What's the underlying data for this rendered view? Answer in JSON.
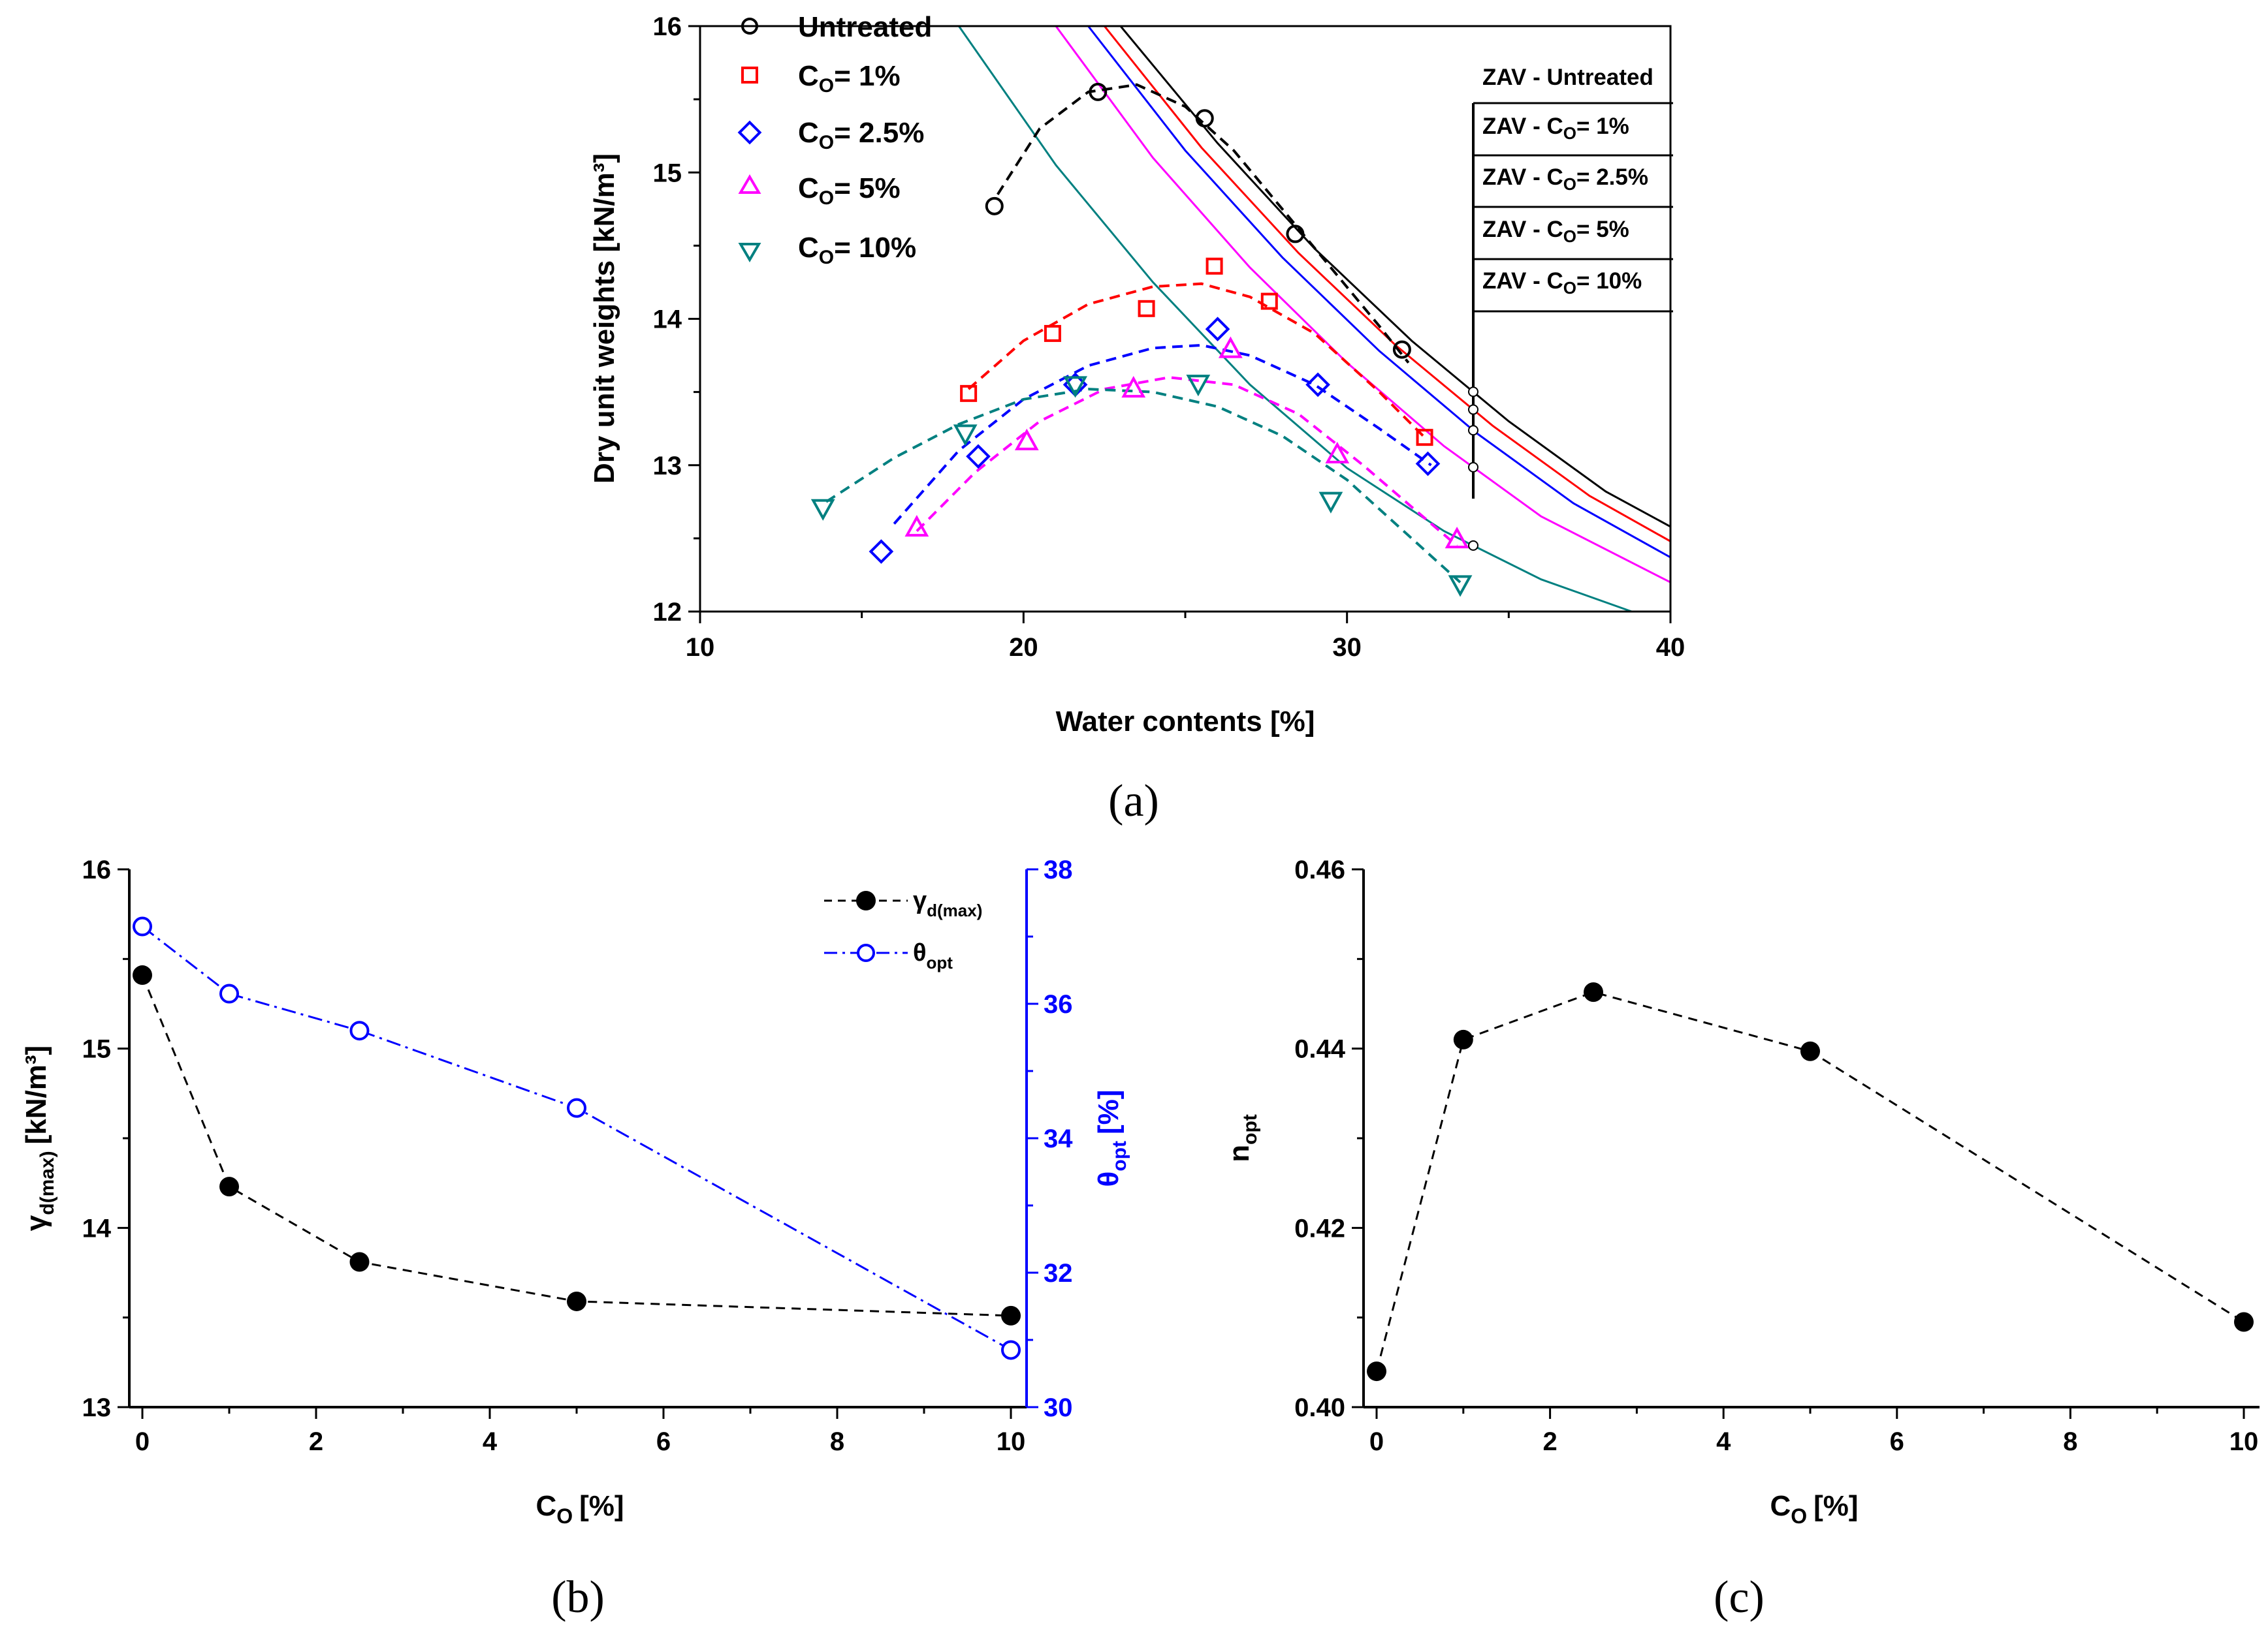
{
  "chart_data": [
    {
      "panel": "(a)",
      "type": "scatter",
      "xlabel": "Water contents [%]",
      "ylabel": "Dry unit weights [kN/m³]",
      "xlim": [
        10,
        40
      ],
      "ylim": [
        12,
        16
      ],
      "xticks": [
        "10",
        "20",
        "30",
        "40"
      ],
      "yticks": [
        "12",
        "13",
        "14",
        "15",
        "16"
      ],
      "series": [
        {
          "name": "Untreated",
          "marker": "circle",
          "color": "#000000",
          "x": [
            19.1,
            22.3,
            25.6,
            28.4,
            31.7
          ],
          "y": [
            14.77,
            15.55,
            15.37,
            14.58,
            13.79
          ]
        },
        {
          "name": "Co = 1%",
          "marker": "square",
          "color": "#ff0000",
          "x": [
            18.3,
            20.9,
            23.8,
            25.9,
            27.6,
            32.4
          ],
          "y": [
            13.49,
            13.9,
            14.07,
            14.36,
            14.12,
            13.19
          ]
        },
        {
          "name": "Co = 2.5%",
          "marker": "diamond",
          "color": "#0000ff",
          "x": [
            15.6,
            18.6,
            21.6,
            26.0,
            29.1,
            32.5
          ],
          "y": [
            12.41,
            13.06,
            13.55,
            13.93,
            13.55,
            13.01
          ]
        },
        {
          "name": "Co = 5%",
          "marker": "triangle-up",
          "color": "#ff00ff",
          "x": [
            16.7,
            20.1,
            23.4,
            26.4,
            29.7,
            33.4
          ],
          "y": [
            12.57,
            13.16,
            13.52,
            13.79,
            13.07,
            12.49
          ]
        },
        {
          "name": "Co = 10%",
          "marker": "triangle-down",
          "color": "#008080",
          "x": [
            13.8,
            18.2,
            21.6,
            25.4,
            29.5,
            33.5
          ],
          "y": [
            12.71,
            13.22,
            13.55,
            13.56,
            12.76,
            12.19
          ]
        }
      ],
      "fit_curves": [
        {
          "series": "Untreated",
          "color": "#000000",
          "x": [
            19.2,
            20.5,
            22.0,
            23.5,
            25.0,
            26.5,
            28.0,
            29.5,
            31.0,
            31.9
          ],
          "y": [
            14.85,
            15.3,
            15.55,
            15.6,
            15.45,
            15.15,
            14.75,
            14.35,
            13.95,
            13.7
          ]
        },
        {
          "series": "Co = 1%",
          "color": "#ff0000",
          "x": [
            18.3,
            20.0,
            22.0,
            24.0,
            25.5,
            27.0,
            29.0,
            31.0,
            32.4
          ],
          "y": [
            13.52,
            13.85,
            14.1,
            14.22,
            14.24,
            14.15,
            13.9,
            13.5,
            13.19
          ]
        },
        {
          "series": "Co = 2.5%",
          "color": "#0000ff",
          "x": [
            16.0,
            18.0,
            20.0,
            22.0,
            24.0,
            25.5,
            27.0,
            29.0,
            31.0,
            32.6
          ],
          "y": [
            12.6,
            13.1,
            13.45,
            13.68,
            13.8,
            13.82,
            13.75,
            13.55,
            13.25,
            13.0
          ]
        },
        {
          "series": "Co = 5%",
          "color": "#ff00ff",
          "x": [
            16.7,
            18.5,
            20.5,
            22.5,
            24.5,
            26.5,
            28.5,
            30.5,
            32.5,
            33.4
          ],
          "y": [
            12.55,
            12.95,
            13.3,
            13.52,
            13.6,
            13.55,
            13.35,
            13.0,
            12.62,
            12.45
          ]
        },
        {
          "series": "Co = 10%",
          "color": "#008080",
          "x": [
            13.9,
            16.0,
            18.0,
            20.0,
            22.0,
            24.0,
            26.0,
            28.0,
            30.0,
            32.0,
            33.5
          ],
          "y": [
            12.75,
            13.05,
            13.28,
            13.45,
            13.52,
            13.5,
            13.4,
            13.2,
            12.9,
            12.5,
            12.2
          ]
        }
      ],
      "zav_curves": [
        {
          "label": "ZAV - Untreated",
          "color": "#000000",
          "x": [
            23.0,
            26.0,
            29.0,
            32.0,
            35.0,
            38.0,
            40.0
          ],
          "y": [
            16.0,
            15.2,
            14.48,
            13.85,
            13.3,
            12.82,
            12.58
          ]
        },
        {
          "label": "ZAV - Co = 1%",
          "color": "#ff0000",
          "x": [
            22.5,
            25.5,
            28.5,
            31.5,
            34.5,
            37.5,
            40.0
          ],
          "y": [
            16.0,
            15.17,
            14.45,
            13.82,
            13.27,
            12.79,
            12.48
          ]
        },
        {
          "label": "ZAV - Co = 2.5%",
          "color": "#0000ff",
          "x": [
            22.0,
            25.0,
            28.0,
            31.0,
            34.0,
            37.0,
            40.0
          ],
          "y": [
            16.0,
            15.15,
            14.42,
            13.78,
            13.22,
            12.74,
            12.37
          ]
        },
        {
          "label": "ZAV - Co = 5%",
          "color": "#ff00ff",
          "x": [
            21.0,
            24.0,
            27.0,
            30.0,
            33.0,
            36.0,
            40.0
          ],
          "y": [
            16.0,
            15.1,
            14.35,
            13.7,
            13.13,
            12.65,
            12.2
          ]
        },
        {
          "label": "ZAV - Co = 10%",
          "color": "#008080",
          "x": [
            18.0,
            21.0,
            24.0,
            27.0,
            30.0,
            33.0,
            36.0,
            38.8
          ],
          "y": [
            16.0,
            15.05,
            14.25,
            13.55,
            12.98,
            12.55,
            12.22,
            12.0
          ]
        }
      ],
      "zav_labels": [
        "ZAV - Untreated",
        "ZAV - C",
        "= 1%",
        "ZAV - C",
        "= 2.5%",
        "ZAV - C",
        "= 5%",
        "ZAV - C",
        "= 10%"
      ],
      "legend": {
        "position": "top-left",
        "entries": [
          "Untreated",
          "C",
          "= 1%",
          "C",
          "= 2.5%",
          "C",
          "= 5%",
          "C",
          "= 10%"
        ],
        "subscript": "O"
      }
    },
    {
      "panel": "(b)",
      "type": "line",
      "xlabel": "C",
      "xlabel_sub": "O",
      "xlabel_unit": "[%]",
      "ylabel_main": "γ",
      "ylabel_sub": "d(max)",
      "ylabel_unit": "[kN/m³]",
      "y2label_main": "θ",
      "y2label_sub": "opt",
      "y2label_unit": "[%]",
      "xlim": [
        0,
        10
      ],
      "ylim": [
        13,
        16
      ],
      "y2lim": [
        30,
        38
      ],
      "xticks": [
        "0",
        "2",
        "4",
        "6",
        "8",
        "10"
      ],
      "yticks": [
        "13",
        "14",
        "15",
        "16"
      ],
      "y2ticks": [
        "30",
        "32",
        "34",
        "36",
        "38"
      ],
      "series": [
        {
          "name": "γd(max)",
          "axis": "left",
          "color": "#000000",
          "style": "dashed",
          "marker": "filled-circle",
          "x": [
            0,
            1,
            2.5,
            5,
            10
          ],
          "y": [
            15.41,
            14.23,
            13.81,
            13.59,
            13.51
          ]
        },
        {
          "name": "θopt",
          "axis": "right",
          "color": "#0000ff",
          "style": "dash-dot",
          "marker": "open-circle",
          "x": [
            0,
            1,
            2.5,
            5,
            10
          ],
          "y": [
            37.15,
            36.15,
            35.6,
            34.45,
            30.85
          ]
        }
      ],
      "legend": {
        "position": "top-right",
        "entries": [
          "γ",
          "d(max)",
          "θ",
          "opt"
        ]
      }
    },
    {
      "panel": "(c)",
      "type": "line",
      "xlabel": "C",
      "xlabel_sub": "O",
      "xlabel_unit": "[%]",
      "ylabel_main": "n",
      "ylabel_sub": "opt",
      "xlim": [
        0,
        10
      ],
      "ylim": [
        0.4,
        0.46
      ],
      "xticks": [
        "0",
        "2",
        "4",
        "6",
        "8",
        "10"
      ],
      "yticks": [
        "0.40",
        "0.42",
        "0.44",
        "0.46"
      ],
      "series": [
        {
          "name": "nopt",
          "color": "#000000",
          "style": "dashed",
          "marker": "filled-circle",
          "x": [
            0,
            1,
            2.5,
            5,
            10
          ],
          "y": [
            0.404,
            0.441,
            0.4463,
            0.4397,
            0.4095
          ]
        }
      ]
    }
  ]
}
